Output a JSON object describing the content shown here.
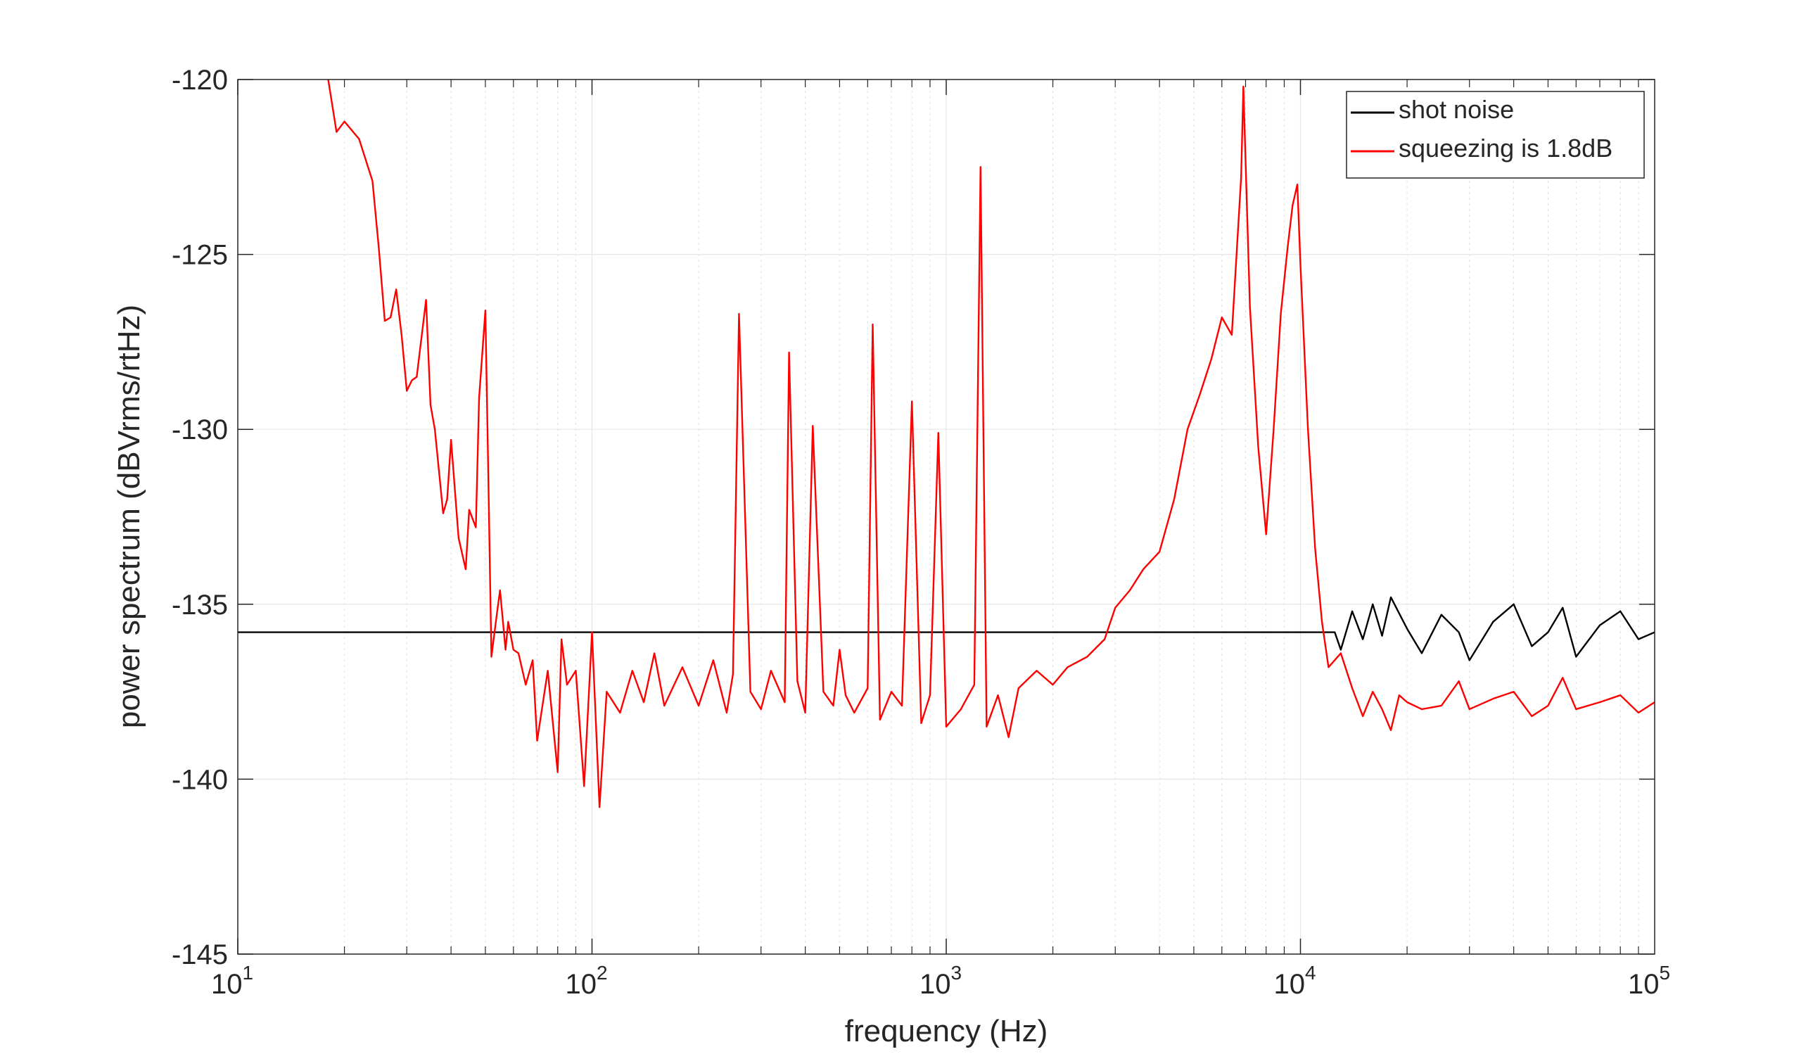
{
  "chart_data": {
    "type": "line",
    "title": "",
    "xlabel": "frequency (Hz)",
    "ylabel": "power spectrum (dBVrms/rtHz)",
    "xscale": "log",
    "xlim": [
      10,
      100000
    ],
    "ylim": [
      -145,
      -120
    ],
    "xticks": [
      {
        "value": 10,
        "base": "10",
        "exp": "1"
      },
      {
        "value": 100,
        "base": "10",
        "exp": "2"
      },
      {
        "value": 1000,
        "base": "10",
        "exp": "3"
      },
      {
        "value": 10000,
        "base": "10",
        "exp": "4"
      },
      {
        "value": 100000,
        "base": "10",
        "exp": "5"
      }
    ],
    "yticks": [
      -120,
      -125,
      -130,
      -135,
      -140,
      -145
    ],
    "ytick_labels": [
      "-120",
      "-125",
      "-130",
      "-135",
      "-140",
      "-145"
    ],
    "grid": true,
    "legend_position": "top-right",
    "series": [
      {
        "name": "shot noise",
        "color": "#000000",
        "baseline": -135.8,
        "x": [
          10,
          100,
          1000,
          10000,
          12500,
          13000,
          14000,
          15000,
          16000,
          17000,
          18000,
          20000,
          22000,
          25000,
          28000,
          30000,
          35000,
          40000,
          45000,
          50000,
          55000,
          60000,
          70000,
          80000,
          90000,
          100000
        ],
        "y": [
          -135.8,
          -135.8,
          -135.8,
          -135.8,
          -135.8,
          -136.3,
          -135.2,
          -136.0,
          -135.0,
          -135.9,
          -134.8,
          -135.7,
          -136.4,
          -135.3,
          -135.8,
          -136.6,
          -135.5,
          -135.0,
          -136.2,
          -135.8,
          -135.1,
          -136.5,
          -135.6,
          -135.2,
          -136.0,
          -135.8
        ]
      },
      {
        "name": "squeezing is 1.8dB",
        "color": "#ff0000",
        "x": [
          18,
          19,
          20,
          22,
          24,
          25,
          26,
          27,
          28,
          29,
          30,
          31,
          32,
          34,
          35,
          36,
          38,
          39,
          40,
          42,
          44,
          45,
          47,
          48,
          50,
          51,
          52,
          54,
          55,
          57,
          58,
          60,
          62,
          65,
          68,
          70,
          75,
          80,
          82,
          85,
          90,
          95,
          100,
          105,
          110,
          120,
          130,
          140,
          150,
          160,
          180,
          200,
          220,
          240,
          250,
          260,
          280,
          300,
          320,
          350,
          360,
          380,
          400,
          420,
          450,
          480,
          500,
          520,
          550,
          600,
          620,
          650,
          700,
          750,
          800,
          850,
          900,
          950,
          1000,
          1100,
          1200,
          1250,
          1300,
          1400,
          1500,
          1600,
          1800,
          2000,
          2200,
          2500,
          2800,
          3000,
          3300,
          3600,
          4000,
          4400,
          4800,
          5200,
          5600,
          6000,
          6400,
          6800,
          6900,
          7200,
          7600,
          8000,
          8400,
          8800,
          9200,
          9500,
          9800,
          10000,
          10500,
          11000,
          11500,
          12000,
          13000,
          14000,
          15000,
          16000,
          17000,
          18000,
          19000,
          20000,
          22000,
          25000,
          28000,
          30000,
          35000,
          40000,
          45000,
          50000,
          55000,
          60000,
          70000,
          80000,
          90000,
          100000
        ],
        "y": [
          -120.0,
          -121.5,
          -121.2,
          -121.7,
          -122.9,
          -124.8,
          -126.9,
          -126.8,
          -126.0,
          -127.3,
          -128.9,
          -128.6,
          -128.5,
          -126.3,
          -129.3,
          -130.0,
          -132.4,
          -132.0,
          -130.3,
          -133.1,
          -134.0,
          -132.3,
          -132.8,
          -129.1,
          -126.6,
          -131.5,
          -136.5,
          -135.2,
          -134.6,
          -136.3,
          -135.5,
          -136.3,
          -136.4,
          -137.3,
          -136.6,
          -138.9,
          -136.9,
          -139.8,
          -136.0,
          -137.3,
          -136.9,
          -140.2,
          -135.8,
          -140.8,
          -137.5,
          -138.1,
          -136.9,
          -137.8,
          -136.4,
          -137.9,
          -136.8,
          -137.9,
          -136.6,
          -138.1,
          -137.0,
          -126.7,
          -137.5,
          -138.0,
          -136.9,
          -137.8,
          -127.8,
          -137.2,
          -138.1,
          -129.9,
          -137.5,
          -137.9,
          -136.3,
          -137.6,
          -138.1,
          -137.4,
          -127.0,
          -138.3,
          -137.5,
          -137.9,
          -129.2,
          -138.4,
          -137.6,
          -130.1,
          -138.5,
          -138.0,
          -137.3,
          -122.5,
          -138.5,
          -137.6,
          -138.8,
          -137.4,
          -136.9,
          -137.3,
          -136.8,
          -136.5,
          -136.0,
          -135.1,
          -134.6,
          -134.0,
          -133.5,
          -132.0,
          -130.0,
          -129.0,
          -128.0,
          -126.8,
          -127.3,
          -122.8,
          -120.2,
          -126.5,
          -130.5,
          -133.0,
          -130.0,
          -126.7,
          -124.8,
          -123.6,
          -123.0,
          -125.3,
          -130.0,
          -133.4,
          -135.5,
          -136.8,
          -136.4,
          -137.4,
          -138.2,
          -137.5,
          -138.0,
          -138.6,
          -137.6,
          -137.8,
          -138.0,
          -137.9,
          -137.2,
          -138.0,
          -137.7,
          -137.5,
          -138.2,
          -137.9,
          -137.1,
          -138.0,
          -137.8,
          -137.6,
          -138.1,
          -137.8
        ]
      }
    ]
  }
}
